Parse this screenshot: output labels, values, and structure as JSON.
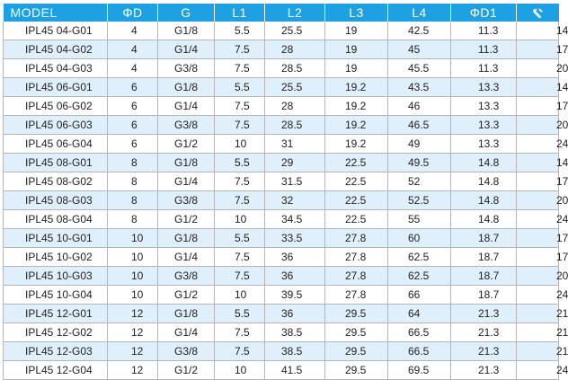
{
  "headers": [
    "MODEL",
    "ΦD",
    "G",
    "L1",
    "L2",
    "L3",
    "L4",
    "ΦD1",
    ""
  ],
  "rows": [
    [
      "IPL45 04-G01",
      "4",
      "G1/8",
      "5.5",
      "25.5",
      "19",
      "42.5",
      "11.3",
      "14"
    ],
    [
      "IPL45 04-G02",
      "4",
      "G1/4",
      "7.5",
      "28",
      "19",
      "45",
      "11.3",
      "17"
    ],
    [
      "IPL45 04-G03",
      "4",
      "G3/8",
      "7.5",
      "28.5",
      "19",
      "45.5",
      "11.3",
      "20"
    ],
    [
      "IPL45 06-G01",
      "6",
      "G1/8",
      "5.5",
      "25.5",
      "19.2",
      "43.5",
      "13.3",
      "14"
    ],
    [
      "IPL45 06-G02",
      "6",
      "G1/4",
      "7.5",
      "28",
      "19.2",
      "46",
      "13.3",
      "17"
    ],
    [
      "IPL45 06-G03",
      "6",
      "G3/8",
      "7.5",
      "28.5",
      "19.2",
      "46.5",
      "13.3",
      "20"
    ],
    [
      "IPL45 06-G04",
      "6",
      "G1/2",
      "10",
      "31",
      "19.2",
      "49",
      "13.3",
      "24"
    ],
    [
      "IPL45 08-G01",
      "8",
      "G1/8",
      "5.5",
      "29",
      "22.5",
      "49.5",
      "14.8",
      "14"
    ],
    [
      "IPL45 08-G02",
      "8",
      "G1/4",
      "7.5",
      "31.5",
      "22.5",
      "52",
      "14.8",
      "17"
    ],
    [
      "IPL45 08-G03",
      "8",
      "G3/8",
      "7.5",
      "32",
      "22.5",
      "52.5",
      "14.8",
      "20"
    ],
    [
      "IPL45 08-G04",
      "8",
      "G1/2",
      "10",
      "34.5",
      "22.5",
      "55",
      "14.8",
      "24"
    ],
    [
      "IPL45 10-G01",
      "10",
      "G1/8",
      "5.5",
      "33.5",
      "27.8",
      "60",
      "18.7",
      "17"
    ],
    [
      "IPL45 10-G02",
      "10",
      "G1/4",
      "7.5",
      "36",
      "27.8",
      "62.5",
      "18.7",
      "17"
    ],
    [
      "IPL45 10-G03",
      "10",
      "G3/8",
      "7.5",
      "36",
      "27.8",
      "62.5",
      "18.7",
      "20"
    ],
    [
      "IPL45 10-G04",
      "10",
      "G1/2",
      "10",
      "39.5",
      "27.8",
      "66",
      "18.7",
      "24"
    ],
    [
      "IPL45 12-G01",
      "12",
      "G1/8",
      "5.5",
      "36",
      "29.5",
      "64",
      "21.3",
      "21"
    ],
    [
      "IPL45 12-G02",
      "12",
      "G1/4",
      "7.5",
      "38.5",
      "29.5",
      "66.5",
      "21.3",
      "21"
    ],
    [
      "IPL45 12-G03",
      "12",
      "G3/8",
      "7.5",
      "38.5",
      "29.5",
      "66.5",
      "21.3",
      "21"
    ],
    [
      "IPL45 12-G04",
      "12",
      "G1/2",
      "10",
      "41.5",
      "29.5",
      "69.5",
      "21.3",
      "24"
    ]
  ],
  "icons": {
    "last_header": "wrench-icon"
  },
  "colors": {
    "header_bg": "#1ea1e3",
    "alt_row_bg": "#dfeffb",
    "grid": "#b5b5b5"
  }
}
